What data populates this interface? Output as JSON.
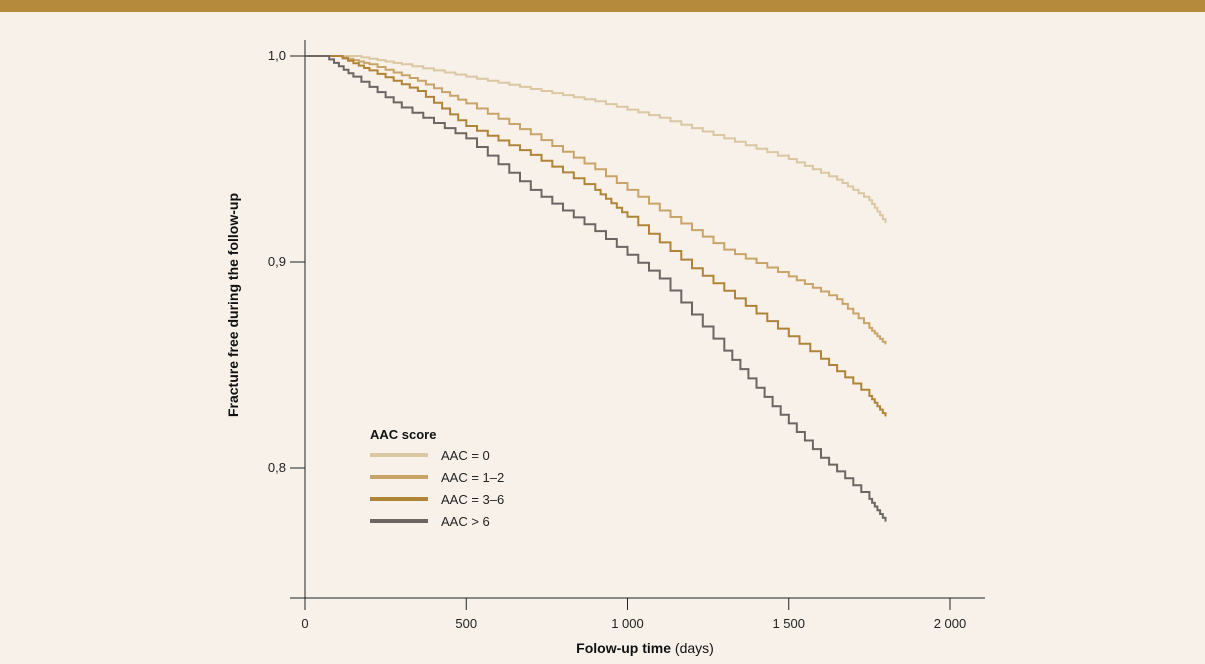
{
  "colors": {
    "header_band": "#b58a3c",
    "background": "#f7f1ea"
  },
  "chart_data": {
    "type": "line",
    "step": true,
    "xlabel_bold": "Folow-up time",
    "xlabel_unit": " (days)",
    "ylabel": "Fracture free during the follow-up",
    "xlim": [
      0,
      2000
    ],
    "ylim": [
      0.8,
      1.0
    ],
    "x_ticks": [
      0,
      500,
      1000,
      1500,
      2000
    ],
    "x_tick_labels": [
      "0",
      "500",
      "1 000",
      "1 500",
      "2 000"
    ],
    "y_ticks": [
      1.0,
      0.9,
      0.8
    ],
    "y_tick_labels": [
      "1,0",
      "0,9",
      "0,8"
    ],
    "grid": false,
    "legend": {
      "title": "AAC score",
      "position": "lower-left"
    },
    "series": [
      {
        "name": "AAC = 0",
        "color": "#dcc7a3",
        "points": [
          [
            0,
            1.0
          ],
          [
            150,
            1.0
          ],
          [
            300,
            0.996
          ],
          [
            500,
            0.99
          ],
          [
            700,
            0.984
          ],
          [
            900,
            0.978
          ],
          [
            1100,
            0.97
          ],
          [
            1300,
            0.96
          ],
          [
            1500,
            0.95
          ],
          [
            1650,
            0.94
          ],
          [
            1750,
            0.93
          ],
          [
            1800,
            0.919
          ]
        ]
      },
      {
        "name": "AAC = 1–2",
        "color": "#c9a468",
        "points": [
          [
            0,
            1.0
          ],
          [
            100,
            1.0
          ],
          [
            200,
            0.996
          ],
          [
            350,
            0.988
          ],
          [
            500,
            0.977
          ],
          [
            700,
            0.962
          ],
          [
            900,
            0.945
          ],
          [
            1100,
            0.925
          ],
          [
            1300,
            0.906
          ],
          [
            1500,
            0.893
          ],
          [
            1650,
            0.882
          ],
          [
            1750,
            0.868
          ],
          [
            1800,
            0.86
          ]
        ]
      },
      {
        "name": "AAC = 3–6",
        "color": "#b08436",
        "points": [
          [
            0,
            1.0
          ],
          [
            100,
            1.0
          ],
          [
            200,
            0.993
          ],
          [
            350,
            0.983
          ],
          [
            500,
            0.966
          ],
          [
            700,
            0.952
          ],
          [
            900,
            0.935
          ],
          [
            1000,
            0.922
          ],
          [
            1200,
            0.897
          ],
          [
            1400,
            0.875
          ],
          [
            1600,
            0.853
          ],
          [
            1750,
            0.835
          ],
          [
            1800,
            0.825
          ]
        ]
      },
      {
        "name": "AAC > 6",
        "color": "#6b6663",
        "points": [
          [
            0,
            1.0
          ],
          [
            60,
            1.0
          ],
          [
            150,
            0.99
          ],
          [
            300,
            0.975
          ],
          [
            500,
            0.96
          ],
          [
            700,
            0.935
          ],
          [
            900,
            0.915
          ],
          [
            1100,
            0.892
          ],
          [
            1300,
            0.857
          ],
          [
            1450,
            0.83
          ],
          [
            1600,
            0.805
          ],
          [
            1750,
            0.785
          ],
          [
            1800,
            0.774
          ]
        ]
      }
    ]
  }
}
